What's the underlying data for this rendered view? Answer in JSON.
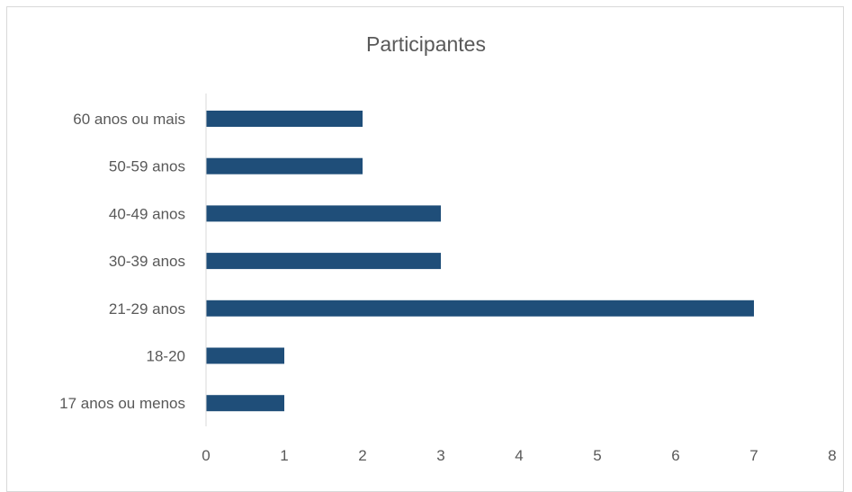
{
  "chart_data": {
    "type": "bar",
    "orientation": "horizontal",
    "title": "Participantes",
    "categories": [
      "17 anos ou menos",
      "18-20",
      "21-29 anos",
      "30-39 anos",
      "40-49 anos",
      "50-59 anos",
      "60 anos ou mais"
    ],
    "values": [
      1,
      1,
      7,
      3,
      3,
      2,
      2
    ],
    "xlim": [
      0,
      8
    ],
    "xticks": [
      "0",
      "1",
      "2",
      "3",
      "4",
      "5",
      "6",
      "7",
      "8"
    ],
    "xlabel": "",
    "ylabel": "",
    "grid": false,
    "legend": "none",
    "bar_color": "#1f4e79",
    "axis_color": "#d9d9d9",
    "text_color": "#595959"
  }
}
